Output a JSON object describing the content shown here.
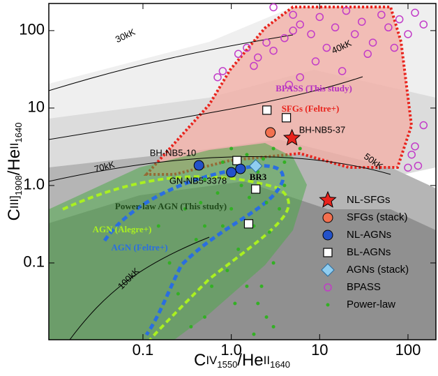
{
  "chart_data": {
    "type": "scatter",
    "log_x": true,
    "log_y": true,
    "xlim": [
      0.0086,
      207
    ],
    "ylim": [
      0.0102,
      224
    ],
    "xticks": [
      0.1,
      {
        "value": 1,
        "label": "1.0"
      },
      10,
      100
    ],
    "yticks": [
      0.1,
      {
        "value": 1,
        "label": "1.0"
      },
      10,
      100
    ],
    "x_label": [
      "C",
      "IV",
      "1550",
      "/He",
      "II",
      "1640"
    ],
    "y_label": [
      "C",
      "III]",
      "1908",
      "/He",
      "II",
      "1640"
    ],
    "annotations": [
      "30kK",
      "40kK",
      "50kK",
      "70kK",
      "100kK",
      "BPASS (This study)",
      "SFGs (Feltre+)",
      "Power-law AGN (This study)",
      "AGN (Alegre+)",
      "AGN (Feltre+)",
      "BH-NB5-37",
      "BH-NB5-10",
      "GN-NB5-3378",
      "BR3"
    ],
    "series": [
      {
        "name": "NL-SFGs",
        "marker": "star",
        "color": "#e8231c",
        "x": [
          4.86
        ],
        "y": [
          4.1
        ]
      },
      {
        "name": "SFGs (stack)",
        "marker": "circle",
        "color": "#f2704f",
        "x": [
          2.77
        ],
        "y": [
          4.84
        ]
      },
      {
        "name": "NL-AGNs",
        "marker": "circle",
        "color": "#2352c9",
        "x": [
          0.43,
          1.0,
          1.27
        ],
        "y": [
          1.82,
          1.48,
          1.64
        ]
      },
      {
        "name": "BL-AGNs",
        "marker": "square",
        "color": "#ffffff",
        "x": [
          2.53,
          4.2,
          1.16,
          1.89,
          1.57
        ],
        "y": [
          9.4,
          7.5,
          2.1,
          0.9,
          0.32
        ]
      },
      {
        "name": "AGNs (stack)",
        "marker": "diamond",
        "color": "#8fcdf0",
        "x": [
          1.89
        ],
        "y": [
          1.79
        ]
      },
      {
        "name": "BPASS",
        "marker": "ring",
        "color": "#c23bc8",
        "x": [
          1.2,
          1.5,
          2,
          2.5,
          3,
          4,
          5,
          6,
          8,
          10,
          12,
          15,
          20,
          25,
          30,
          40,
          50,
          60,
          80,
          100,
          120,
          150,
          0.8,
          0.7,
          3,
          5,
          9,
          18,
          35,
          70,
          110,
          130,
          120,
          100,
          150,
          1.8,
          4.5,
          6
        ],
        "y": [
          50,
          60,
          45,
          70,
          55,
          80,
          100,
          120,
          90,
          150,
          60,
          110,
          180,
          90,
          130,
          70,
          160,
          110,
          140,
          90,
          170,
          120,
          30,
          25,
          200,
          160,
          40,
          30,
          50,
          60,
          2.5,
          1.8,
          3.2,
          1.7,
          6,
          35,
          20,
          25
        ]
      },
      {
        "name": "Power-law",
        "marker": "dot",
        "color": "#33b024",
        "x": [
          0.3,
          0.5,
          0.8,
          1,
          1.5,
          2,
          3,
          4,
          2.5,
          1.8,
          1.2,
          0.9,
          0.6,
          0.4,
          1.5,
          2,
          2.5,
          3,
          1.8,
          2.2,
          3,
          1,
          0.7,
          0.5,
          5,
          6,
          0.2,
          0.15,
          0.25,
          1.3,
          2.7,
          3.5,
          4,
          0.35,
          0.5,
          1.1,
          0.8,
          1.6,
          2.3,
          0.45
        ],
        "y": [
          0.5,
          1.2,
          2,
          3,
          2.5,
          1.5,
          3,
          2,
          0.6,
          0.3,
          0.15,
          0.08,
          0.05,
          0.2,
          0.05,
          0.03,
          0.02,
          0.015,
          0.012,
          0.05,
          0.1,
          0.5,
          0.8,
          0.3,
          4,
          3,
          0.1,
          0.3,
          0.04,
          1,
          0.25,
          0.5,
          1,
          0.015,
          0.02,
          0.03,
          0.3,
          0.7,
          2.2,
          0.6
        ]
      }
    ]
  }
}
